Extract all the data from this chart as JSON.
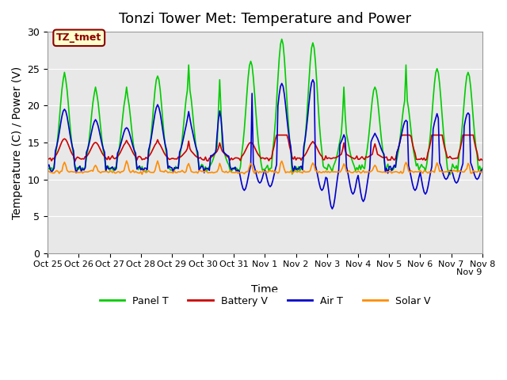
{
  "title": "Tonzi Tower Met: Temperature and Power",
  "ylabel": "Temperature (C) / Power (V)",
  "xlabel": "Time",
  "ylim": [
    0,
    30
  ],
  "xlim": [
    0,
    336
  ],
  "xtick_positions": [
    0,
    24,
    48,
    72,
    96,
    120,
    144,
    168,
    192,
    216,
    240,
    264,
    288,
    312,
    336
  ],
  "xtick_labels": [
    "Oct 25",
    "Oct 26",
    "Oct 27",
    "Oct 28",
    "Oct 29",
    "Oct 30",
    "Oct 31",
    "Nov 1",
    "Nov 2",
    "Nov 3",
    "Nov 4",
    "Nov 5",
    "Nov 6",
    "Nov 7",
    "Nov 8"
  ],
  "xlabel_extra": "Nov 9",
  "ytick_positions": [
    0,
    5,
    10,
    15,
    20,
    25,
    30
  ],
  "annotation_text": "TZ_tmet",
  "annotation_bg": "#FFFFCC",
  "annotation_border": "#8B0000",
  "bg_color": "#E8E8E8",
  "fig_bg": "#FFFFFF",
  "colors": {
    "panel_t": "#00CC00",
    "battery_v": "#CC0000",
    "air_t": "#0000CC",
    "solar_v": "#FF8C00"
  },
  "legend_labels": [
    "Panel T",
    "Battery V",
    "Air T",
    "Solar V"
  ],
  "title_fontsize": 13,
  "label_fontsize": 10
}
